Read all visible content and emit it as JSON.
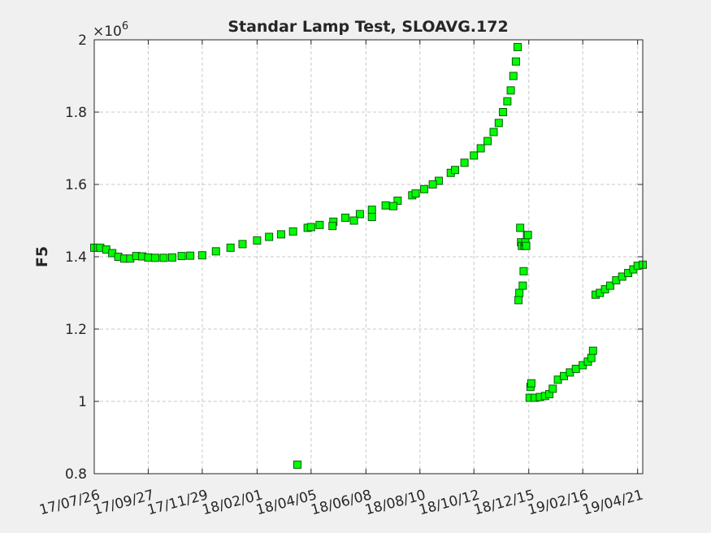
{
  "chart_data": {
    "type": "scatter",
    "title": "Standar Lamp Test, SLOAVG.172",
    "xlabel": "",
    "ylabel": "F5",
    "y_exponent_label": "×10",
    "y_exponent_power": "6",
    "xlim": [
      "2017-07-26",
      "2019-04-27"
    ],
    "ylim": [
      0.8,
      2.0
    ],
    "y_scale_factor": 1000000,
    "grid": true,
    "legend": "none",
    "colors": {
      "marker_edge": "#0a5a0a",
      "marker_fill": "#00ff00",
      "axes": "#262626",
      "grid": "#c8c8c8",
      "background": "#f0f0f0",
      "plot_bg": "#ffffff"
    },
    "x_ticks": [
      "2017-07-26",
      "2017-09-27",
      "2017-11-29",
      "2018-02-01",
      "2018-04-05",
      "2018-06-08",
      "2018-08-10",
      "2018-10-12",
      "2018-12-15",
      "2019-02-16",
      "2019-04-21"
    ],
    "x_tick_labels": [
      "17/07/26",
      "17/09/27",
      "17/11/29",
      "18/02/01",
      "18/04/05",
      "18/06/08",
      "18/08/10",
      "18/10/12",
      "18/12/15",
      "19/02/16",
      "19/04/21"
    ],
    "y_ticks": [
      0.8,
      1.0,
      1.2,
      1.4,
      1.6,
      1.8,
      2.0
    ],
    "y_tick_labels": [
      "0.8",
      "1",
      "1.2",
      "1.4",
      "1.6",
      "1.8",
      "2"
    ],
    "series": [
      {
        "x": [
          "2017-07-26",
          "2017-08-02",
          "2017-08-09",
          "2017-08-16",
          "2017-08-23",
          "2017-08-30",
          "2017-09-06",
          "2017-09-13",
          "2017-09-20",
          "2017-09-27",
          "2017-10-05",
          "2017-10-15",
          "2017-10-25",
          "2017-11-05",
          "2017-11-15",
          "2017-11-29",
          "2017-12-15",
          "2018-01-01",
          "2018-01-15",
          "2018-02-01",
          "2018-02-15",
          "2018-03-01",
          "2018-03-15",
          "2018-04-01",
          "2018-04-15",
          "2018-05-01",
          "2018-05-15",
          "2018-06-01",
          "2018-06-15",
          "2018-07-01",
          "2018-07-15",
          "2018-08-01",
          "2018-08-15",
          "2018-09-01",
          "2018-09-15",
          "2018-10-01",
          "2018-10-12",
          "2018-10-20",
          "2018-10-28",
          "2018-11-04",
          "2018-11-10",
          "2018-11-15",
          "2018-11-20",
          "2018-11-24",
          "2018-11-27",
          "2018-11-30",
          "2018-12-02"
        ],
        "y": [
          1.425,
          1.425,
          1.42,
          1.41,
          1.4,
          1.395,
          1.395,
          1.402,
          1.401,
          1.398,
          1.397,
          1.397,
          1.398,
          1.402,
          1.403,
          1.404,
          1.415,
          1.425,
          1.435,
          1.445,
          1.455,
          1.462,
          1.47,
          1.48,
          1.488,
          1.497,
          1.508,
          1.518,
          1.53,
          1.542,
          1.555,
          1.57,
          1.587,
          1.61,
          1.632,
          1.66,
          1.68,
          1.7,
          1.72,
          1.745,
          1.77,
          1.8,
          1.83,
          1.86,
          1.9,
          1.94,
          1.98
        ]
      },
      {
        "x": [
          "2018-04-05",
          "2018-04-30",
          "2018-05-25",
          "2018-06-15",
          "2018-07-10",
          "2018-08-05",
          "2018-08-25",
          "2018-09-20"
        ],
        "y": [
          1.482,
          1.485,
          1.5,
          1.51,
          1.54,
          1.575,
          1.6,
          1.64
        ]
      },
      {
        "x": [
          "2018-03-20"
        ],
        "y": [
          0.825
        ]
      },
      {
        "x": [
          "2018-12-03",
          "2018-12-04",
          "2018-12-05",
          "2018-12-06",
          "2018-12-07",
          "2018-12-08",
          "2018-12-09",
          "2018-12-10",
          "2018-12-11",
          "2018-12-12",
          "2018-12-13",
          "2018-12-14"
        ],
        "y": [
          1.28,
          1.3,
          1.48,
          1.44,
          1.43,
          1.32,
          1.36,
          1.43,
          1.44,
          1.43,
          1.46,
          1.46
        ]
      },
      {
        "x": [
          "2018-12-16",
          "2018-12-17",
          "2018-12-18",
          "2018-12-22",
          "2018-12-28",
          "2019-01-03",
          "2019-01-08",
          "2019-01-12",
          "2019-01-18",
          "2019-01-25",
          "2019-02-01",
          "2019-02-08",
          "2019-02-16",
          "2019-02-22",
          "2019-02-26",
          "2019-02-28"
        ],
        "y": [
          1.01,
          1.04,
          1.05,
          1.01,
          1.012,
          1.015,
          1.02,
          1.035,
          1.06,
          1.07,
          1.08,
          1.09,
          1.1,
          1.11,
          1.12,
          1.14
        ]
      },
      {
        "x": [
          "2019-03-03",
          "2019-03-08",
          "2019-03-14",
          "2019-03-20",
          "2019-03-27",
          "2019-04-03",
          "2019-04-10",
          "2019-04-16",
          "2019-04-21",
          "2019-04-27"
        ],
        "y": [
          1.295,
          1.3,
          1.31,
          1.32,
          1.335,
          1.345,
          1.355,
          1.365,
          1.375,
          1.378
        ]
      }
    ]
  }
}
